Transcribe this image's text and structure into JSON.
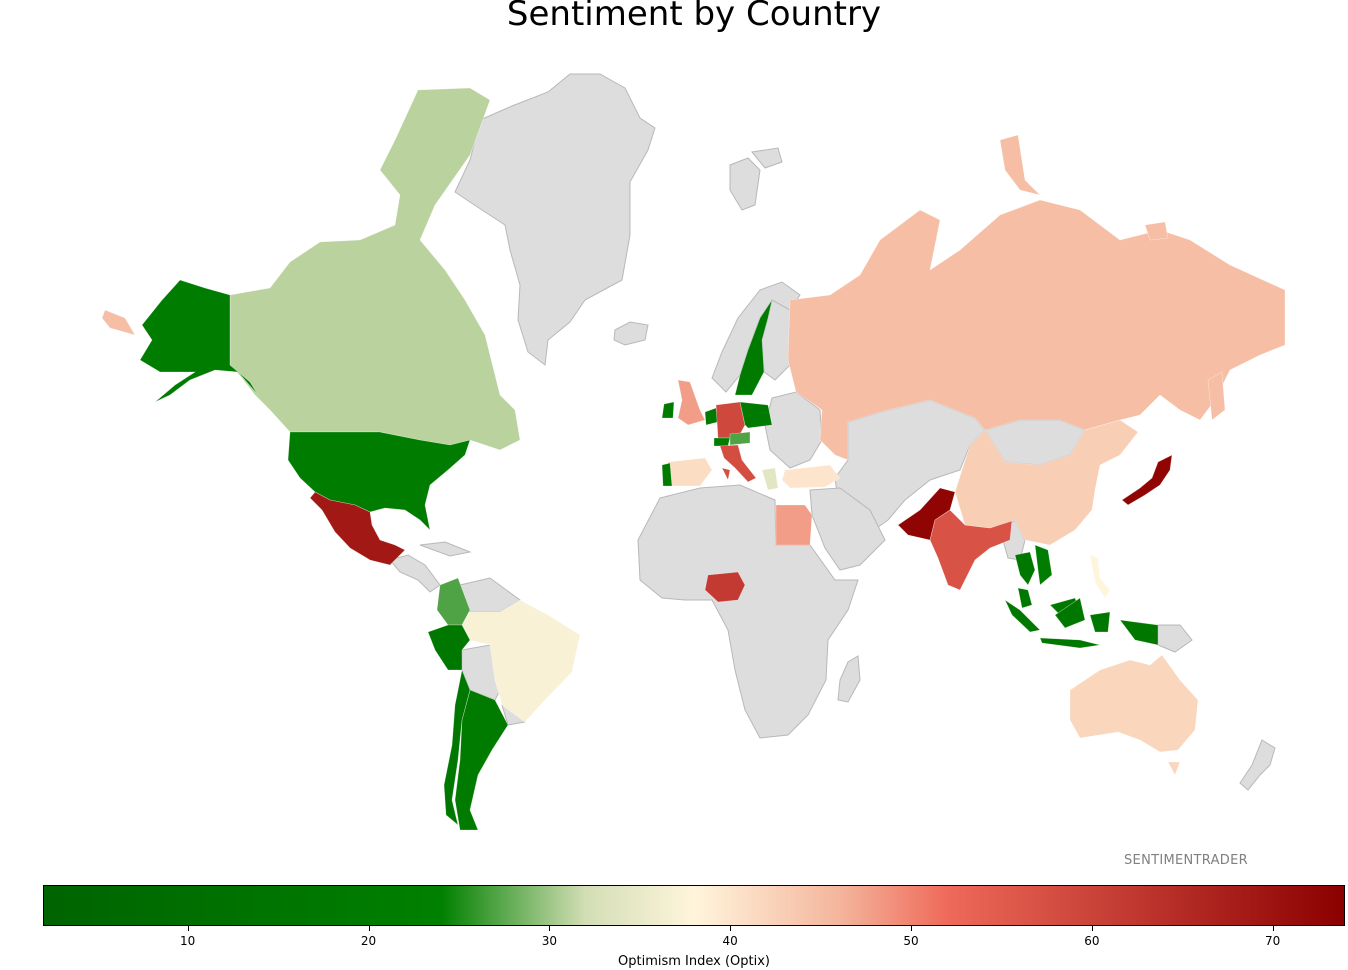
{
  "title": "Sentiment by Country",
  "watermark": "SENTIMENTRADER",
  "colorbar": {
    "label": "Optimism Index (Optix)",
    "min": 2,
    "max": 74,
    "ticks": [
      "10",
      "20",
      "30",
      "40",
      "50",
      "60",
      "70"
    ],
    "stops": [
      {
        "v": 2,
        "c": "#006400"
      },
      {
        "v": 24,
        "c": "#008000"
      },
      {
        "v": 32,
        "c": "#d3deb5"
      },
      {
        "v": 38,
        "c": "#fff5dc"
      },
      {
        "v": 46,
        "c": "#f4b69d"
      },
      {
        "v": 52,
        "c": "#ef6a5a"
      },
      {
        "v": 74,
        "c": "#8b0000"
      }
    ]
  },
  "colors": {
    "no_data": "#dddddd",
    "border": "#b8b8b8"
  },
  "countries": [
    {
      "name": "Canada",
      "value": 31
    },
    {
      "name": "Alaska (United States)",
      "value": 21
    },
    {
      "name": "United States",
      "value": 21
    },
    {
      "name": "Mexico",
      "value": 69
    },
    {
      "name": "Colombia",
      "value": 27
    },
    {
      "name": "Brazil",
      "value": 37
    },
    {
      "name": "Peru",
      "value": 18
    },
    {
      "name": "Chile",
      "value": 18
    },
    {
      "name": "Argentina",
      "value": 20
    },
    {
      "name": "Greenland",
      "value": null
    },
    {
      "name": "Iceland",
      "value": null
    },
    {
      "name": "United Kingdom",
      "value": 48
    },
    {
      "name": "Ireland",
      "value": 20
    },
    {
      "name": "Spain",
      "value": 41
    },
    {
      "name": "Portugal",
      "value": 20
    },
    {
      "name": "Netherlands",
      "value": 20
    },
    {
      "name": "Germany",
      "value": 59
    },
    {
      "name": "Switzerland",
      "value": 22
    },
    {
      "name": "Austria",
      "value": 27
    },
    {
      "name": "Italy",
      "value": 58
    },
    {
      "name": "Greece",
      "value": 34
    },
    {
      "name": "Sweden",
      "value": 20
    },
    {
      "name": "Norway",
      "value": null
    },
    {
      "name": "Finland",
      "value": null
    },
    {
      "name": "Poland",
      "value": 19
    },
    {
      "name": "Turkey",
      "value": 40
    },
    {
      "name": "Russia",
      "value": 45
    },
    {
      "name": "Egypt",
      "value": 48
    },
    {
      "name": "Nigeria",
      "value": 62
    },
    {
      "name": "Pakistan",
      "value": 73
    },
    {
      "name": "India",
      "value": 57
    },
    {
      "name": "China",
      "value": 43
    },
    {
      "name": "Japan",
      "value": 73
    },
    {
      "name": "Thailand",
      "value": 18
    },
    {
      "name": "Vietnam",
      "value": 22
    },
    {
      "name": "Malaysia",
      "value": 18
    },
    {
      "name": "Indonesia",
      "value": 18
    },
    {
      "name": "Philippines",
      "value": 38
    },
    {
      "name": "Australia",
      "value": 42
    }
  ]
}
